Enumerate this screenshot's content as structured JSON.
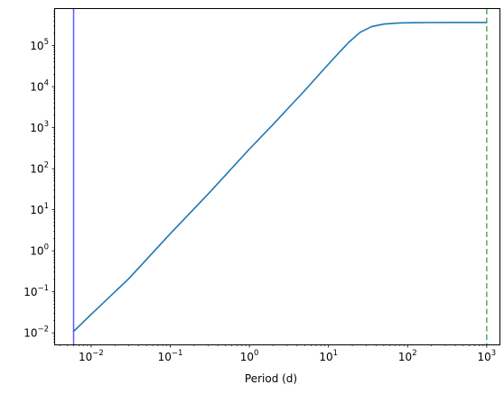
{
  "chart_data": {
    "type": "line",
    "title": "",
    "xlabel": "Period (d)",
    "ylabel": "",
    "xscale": "log",
    "yscale": "log",
    "xlim": [
      0.0035,
      1450
    ],
    "ylim": [
      0.0052,
      780000
    ],
    "grid": false,
    "x_ticks": [
      {
        "base": "10",
        "exp": "−2",
        "value": 0.01
      },
      {
        "base": "10",
        "exp": "−1",
        "value": 0.1
      },
      {
        "base": "10",
        "exp": "0",
        "value": 1
      },
      {
        "base": "10",
        "exp": "1",
        "value": 10
      },
      {
        "base": "10",
        "exp": "2",
        "value": 100
      },
      {
        "base": "10",
        "exp": "3",
        "value": 1000
      }
    ],
    "y_ticks": [
      {
        "base": "10",
        "exp": "−2",
        "value": 0.01
      },
      {
        "base": "10",
        "exp": "−1",
        "value": 0.1
      },
      {
        "base": "10",
        "exp": "0",
        "value": 1
      },
      {
        "base": "10",
        "exp": "1",
        "value": 10
      },
      {
        "base": "10",
        "exp": "2",
        "value": 100
      },
      {
        "base": "10",
        "exp": "3",
        "value": 1000
      },
      {
        "base": "10",
        "exp": "4",
        "value": 10000
      },
      {
        "base": "10",
        "exp": "5",
        "value": 100000
      }
    ],
    "series": [
      {
        "color": "#1f77b4",
        "x": [
          0.006,
          0.01,
          0.03,
          0.1,
          0.3,
          1,
          2,
          3,
          5,
          8,
          12,
          18,
          25,
          35,
          50,
          80,
          120,
          200,
          400,
          700,
          1000
        ],
        "y": [
          0.0108,
          0.028,
          0.21,
          2.6,
          24,
          300,
          1200,
          2800,
          8000,
          22000,
          52000,
          120000,
          210000,
          290000,
          335000,
          357000,
          362000,
          365000,
          366000,
          366500,
          367000
        ]
      }
    ],
    "vertical_lines": [
      {
        "x": 0.006,
        "color": "#5b5bff",
        "style": "solid"
      },
      {
        "x": 1000,
        "color": "#5aaa5a",
        "style": "dashed"
      }
    ]
  }
}
